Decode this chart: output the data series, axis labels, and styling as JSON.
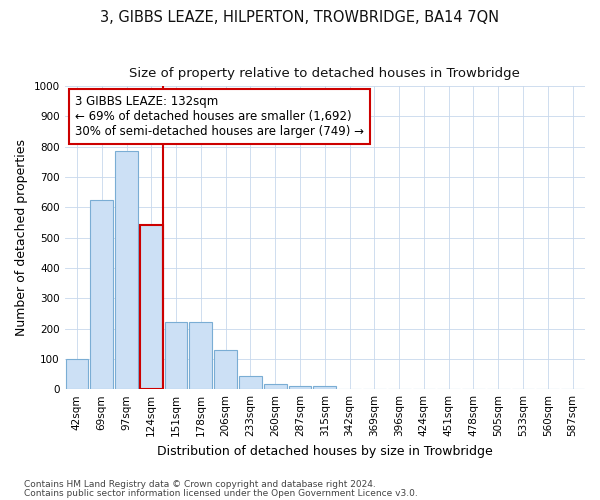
{
  "title": "3, GIBBS LEAZE, HILPERTON, TROWBRIDGE, BA14 7QN",
  "subtitle": "Size of property relative to detached houses in Trowbridge",
  "xlabel": "Distribution of detached houses by size in Trowbridge",
  "ylabel": "Number of detached properties",
  "categories": [
    "42sqm",
    "69sqm",
    "97sqm",
    "124sqm",
    "151sqm",
    "178sqm",
    "206sqm",
    "233sqm",
    "260sqm",
    "287sqm",
    "315sqm",
    "342sqm",
    "369sqm",
    "396sqm",
    "424sqm",
    "451sqm",
    "478sqm",
    "505sqm",
    "533sqm",
    "560sqm",
    "587sqm"
  ],
  "values": [
    100,
    625,
    785,
    540,
    220,
    220,
    130,
    45,
    18,
    10,
    10,
    0,
    0,
    0,
    0,
    0,
    0,
    0,
    0,
    0,
    0
  ],
  "bar_color": "#cce0f5",
  "bar_edge_color": "#7aadd4",
  "highlight_bar_index": 3,
  "highlight_bar_edge_color": "#cc0000",
  "vline_color": "#cc0000",
  "annotation_text": "3 GIBBS LEAZE: 132sqm\n← 69% of detached houses are smaller (1,692)\n30% of semi-detached houses are larger (749) →",
  "annotation_box_color": "#ffffff",
  "annotation_box_edge_color": "#cc0000",
  "ylim": [
    0,
    1000
  ],
  "yticks": [
    0,
    100,
    200,
    300,
    400,
    500,
    600,
    700,
    800,
    900,
    1000
  ],
  "footnote1": "Contains HM Land Registry data © Crown copyright and database right 2024.",
  "footnote2": "Contains public sector information licensed under the Open Government Licence v3.0.",
  "bg_color": "#ffffff",
  "grid_color": "#c8d8ec",
  "title_fontsize": 10.5,
  "subtitle_fontsize": 9.5,
  "axis_label_fontsize": 9,
  "tick_fontsize": 7.5,
  "footnote_fontsize": 6.5
}
